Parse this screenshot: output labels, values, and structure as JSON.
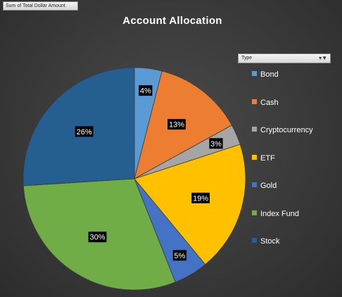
{
  "pivot": {
    "value_field_label": "Sum of Total Dollar Amount",
    "filter_label": "Type",
    "filter_icons": "▾▼"
  },
  "chart_data": {
    "type": "pie",
    "title": "Account Allocation",
    "categories": [
      "Bond",
      "Cash",
      "Cryptocurrency",
      "ETF",
      "Gold",
      "Index Fund",
      "Stock"
    ],
    "values": [
      4,
      13,
      3,
      19,
      5,
      30,
      26
    ],
    "data_labels": [
      "4%",
      "13%",
      "3%",
      "19%",
      "5%",
      "30%",
      "26%"
    ],
    "colors": [
      "#5b9bd5",
      "#ed7d31",
      "#a5a5a5",
      "#ffc000",
      "#4472c4",
      "#70ad47",
      "#255e91"
    ],
    "start_angle_deg": 0,
    "direction": "clockwise",
    "legend_position": "right"
  }
}
